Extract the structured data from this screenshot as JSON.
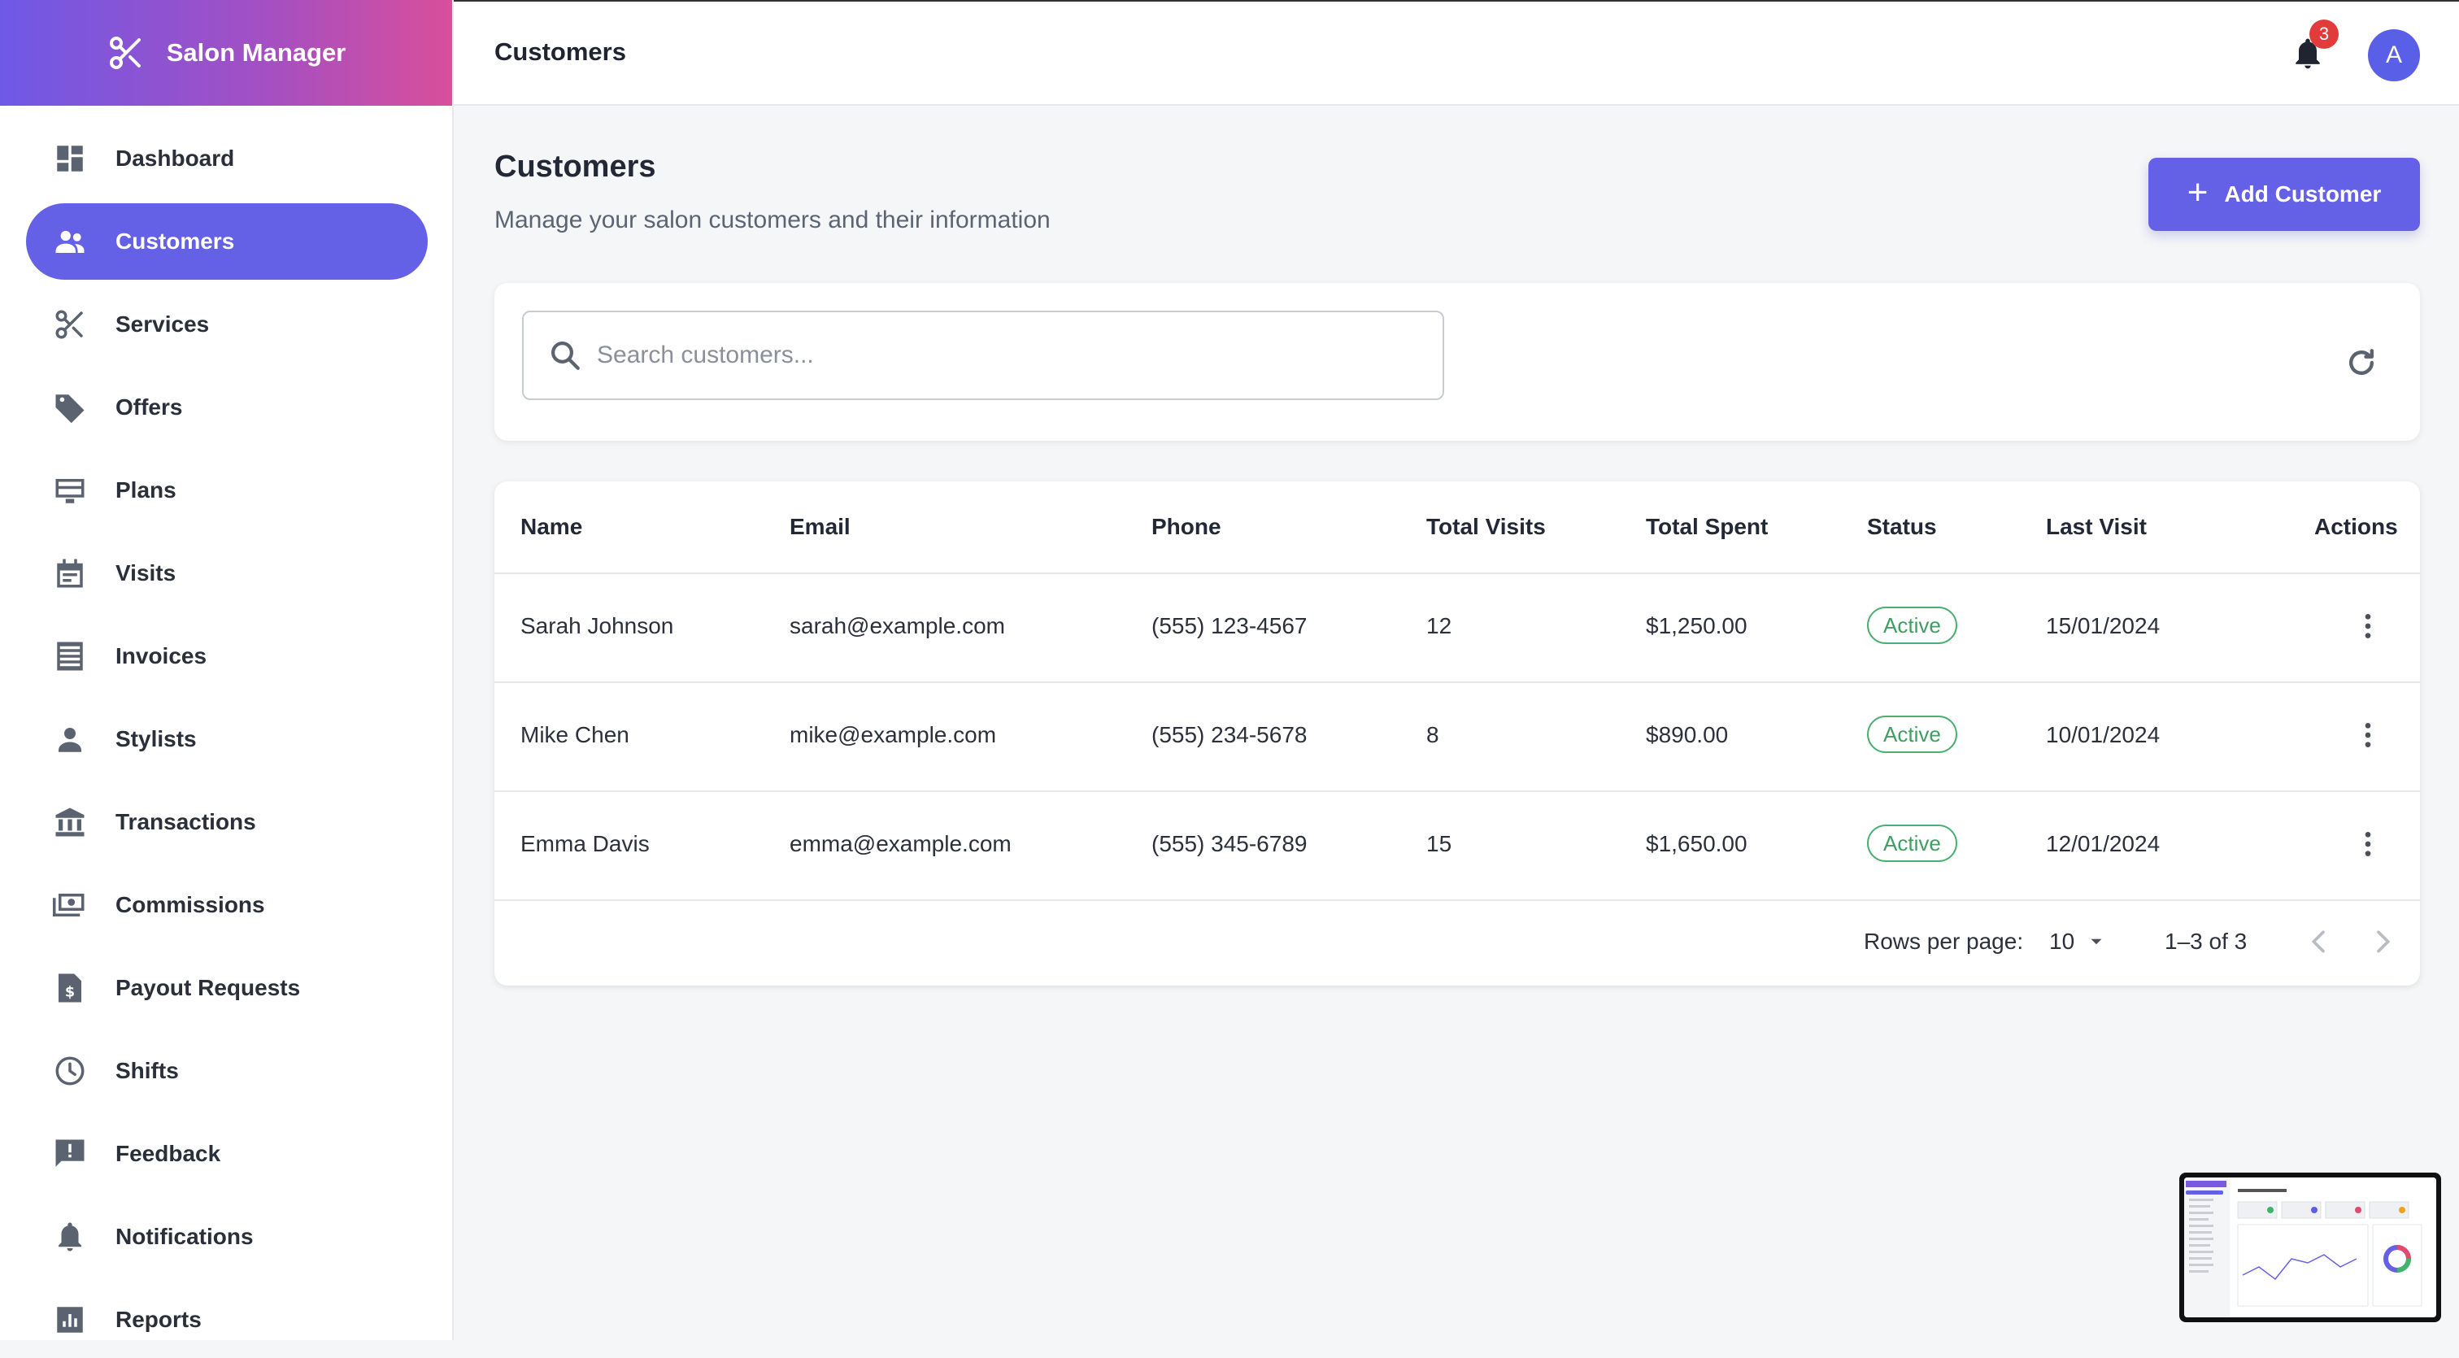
{
  "app": {
    "name": "Salon Manager"
  },
  "header": {
    "title": "Customers",
    "notification_count": "3",
    "avatar_initial": "A"
  },
  "sidebar": {
    "items": [
      {
        "label": "Dashboard",
        "icon": "dashboard-icon"
      },
      {
        "label": "Customers",
        "icon": "people-icon",
        "active": true
      },
      {
        "label": "Services",
        "icon": "scissors-icon"
      },
      {
        "label": "Offers",
        "icon": "tag-icon"
      },
      {
        "label": "Plans",
        "icon": "card-icon"
      },
      {
        "label": "Visits",
        "icon": "calendar-icon"
      },
      {
        "label": "Invoices",
        "icon": "receipt-icon"
      },
      {
        "label": "Stylists",
        "icon": "person-icon"
      },
      {
        "label": "Transactions",
        "icon": "bank-icon"
      },
      {
        "label": "Commissions",
        "icon": "money-icon"
      },
      {
        "label": "Payout Requests",
        "icon": "document-dollar-icon"
      },
      {
        "label": "Shifts",
        "icon": "clock-icon"
      },
      {
        "label": "Feedback",
        "icon": "feedback-icon"
      },
      {
        "label": "Notifications",
        "icon": "bell-icon"
      },
      {
        "label": "Reports",
        "icon": "chart-icon"
      }
    ]
  },
  "main": {
    "title": "Customers",
    "subtitle": "Manage your salon customers and their information",
    "add_button": "Add Customer",
    "search": {
      "placeholder": "Search customers...",
      "value": ""
    },
    "table": {
      "columns": [
        "Name",
        "Email",
        "Phone",
        "Total Visits",
        "Total Spent",
        "Status",
        "Last Visit",
        "Actions"
      ],
      "rows": [
        {
          "name": "Sarah Johnson",
          "email": "sarah@example.com",
          "phone": "(555) 123-4567",
          "visits": "12",
          "spent": "$1,250.00",
          "status": "Active",
          "last_visit": "15/01/2024"
        },
        {
          "name": "Mike Chen",
          "email": "mike@example.com",
          "phone": "(555) 234-5678",
          "visits": "8",
          "spent": "$890.00",
          "status": "Active",
          "last_visit": "10/01/2024"
        },
        {
          "name": "Emma Davis",
          "email": "emma@example.com",
          "phone": "(555) 345-6789",
          "visits": "15",
          "spent": "$1,650.00",
          "status": "Active",
          "last_visit": "12/01/2024"
        }
      ]
    },
    "pagination": {
      "rows_per_page_label": "Rows per page:",
      "rows_per_page": "10",
      "range": "1–3 of 3"
    }
  },
  "colors": {
    "accent": "#6461e6",
    "status_active": "#4caf72",
    "badge": "#e23b3b"
  }
}
